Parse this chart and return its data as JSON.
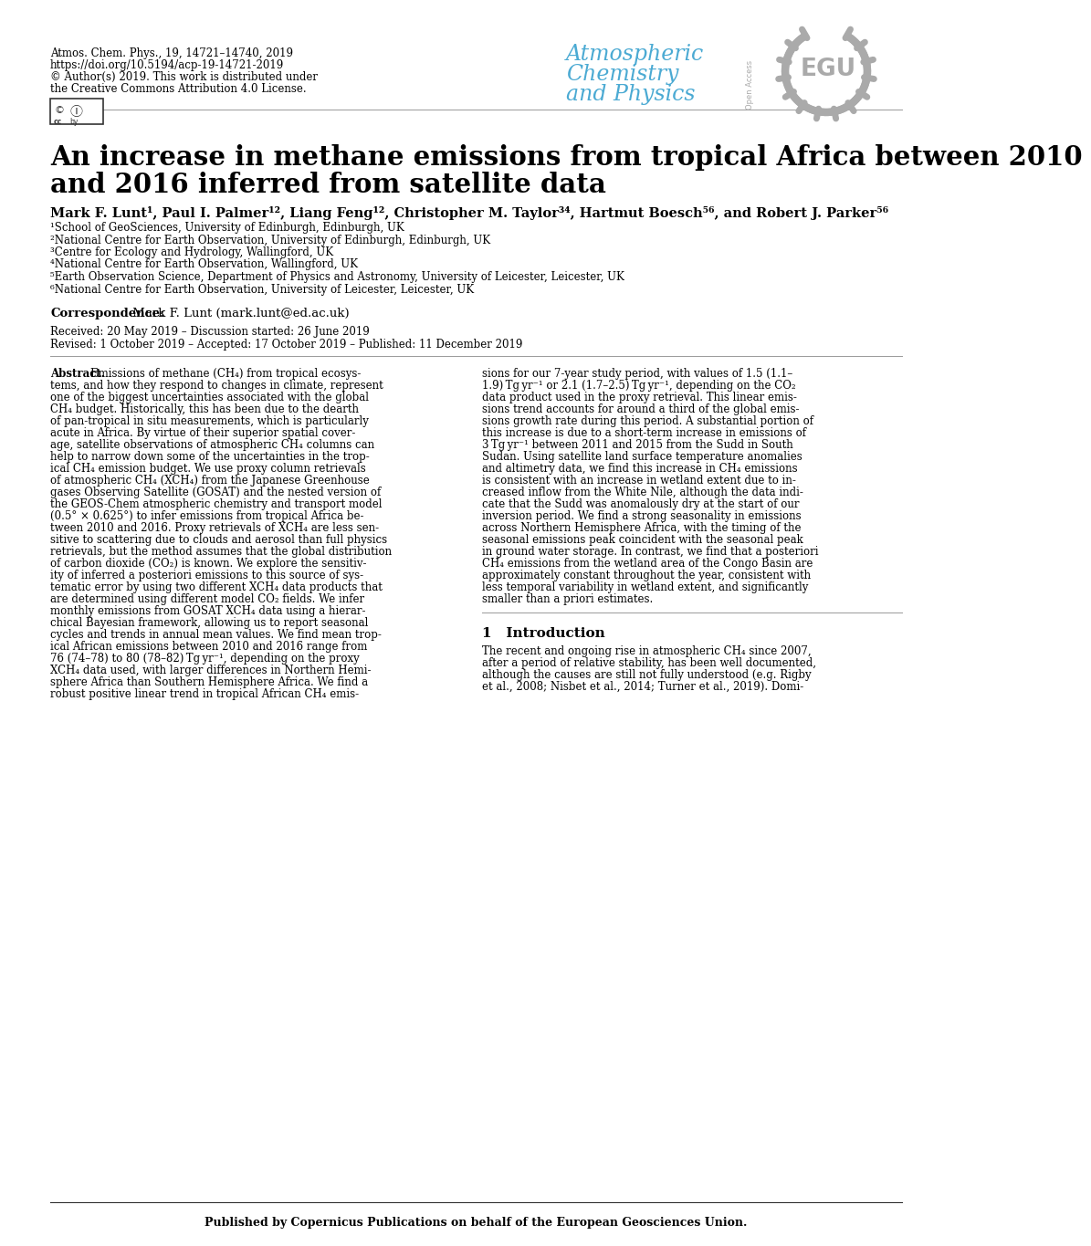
{
  "journal_line1": "Atmos. Chem. Phys., 19, 14721–14740, 2019",
  "journal_line2": "https://doi.org/10.5194/acp-19-14721-2019",
  "journal_line3": "© Author(s) 2019. This work is distributed under",
  "journal_line4": "the Creative Commons Attribution 4.0 License.",
  "journal_color": "#000000",
  "journal_fontsize": 8.5,
  "egu_color": "#4BAAD3",
  "egu_gray": "#AAAAAA",
  "title_line1": "An increase in methane emissions from tropical Africa between 2010",
  "title_line2": "and 2016 inferred from satellite data",
  "title_fontsize": 21,
  "authors": "Mark F. Lunt¹, Paul I. Palmer¹², Liang Feng¹², Christopher M. Taylor³⁴, Hartmut Boesch⁵⁶, and Robert J. Parker⁵⁶",
  "authors_fontsize": 10.5,
  "affil1": "¹School of GeoSciences, University of Edinburgh, Edinburgh, UK",
  "affil2": "²National Centre for Earth Observation, University of Edinburgh, Edinburgh, UK",
  "affil3": "³Centre for Ecology and Hydrology, Wallingford, UK",
  "affil4": "⁴National Centre for Earth Observation, Wallingford, UK",
  "affil5": "⁵Earth Observation Science, Department of Physics and Astronomy, University of Leicester, Leicester, UK",
  "affil6": "⁶National Centre for Earth Observation, University of Leicester, Leicester, UK",
  "affil_fontsize": 8.5,
  "correspondence_label": "Correspondence:",
  "correspondence_text": " Mark F. Lunt (mark.lunt@ed.ac.uk)",
  "correspondence_fontsize": 9.5,
  "received_line1": "Received: 20 May 2019 – Discussion started: 26 June 2019",
  "received_line2": "Revised: 1 October 2019 – Accepted: 17 October 2019 – Published: 11 December 2019",
  "received_fontsize": 8.5,
  "abstract_fontsize": 8.5,
  "intro_section": "1   Introduction",
  "intro_fontsize": 11,
  "published_line": "Published by Copernicus Publications on behalf of the European Geosciences Union.",
  "published_fontsize": 9.0,
  "background_color": "#FFFFFF",
  "text_color": "#000000"
}
